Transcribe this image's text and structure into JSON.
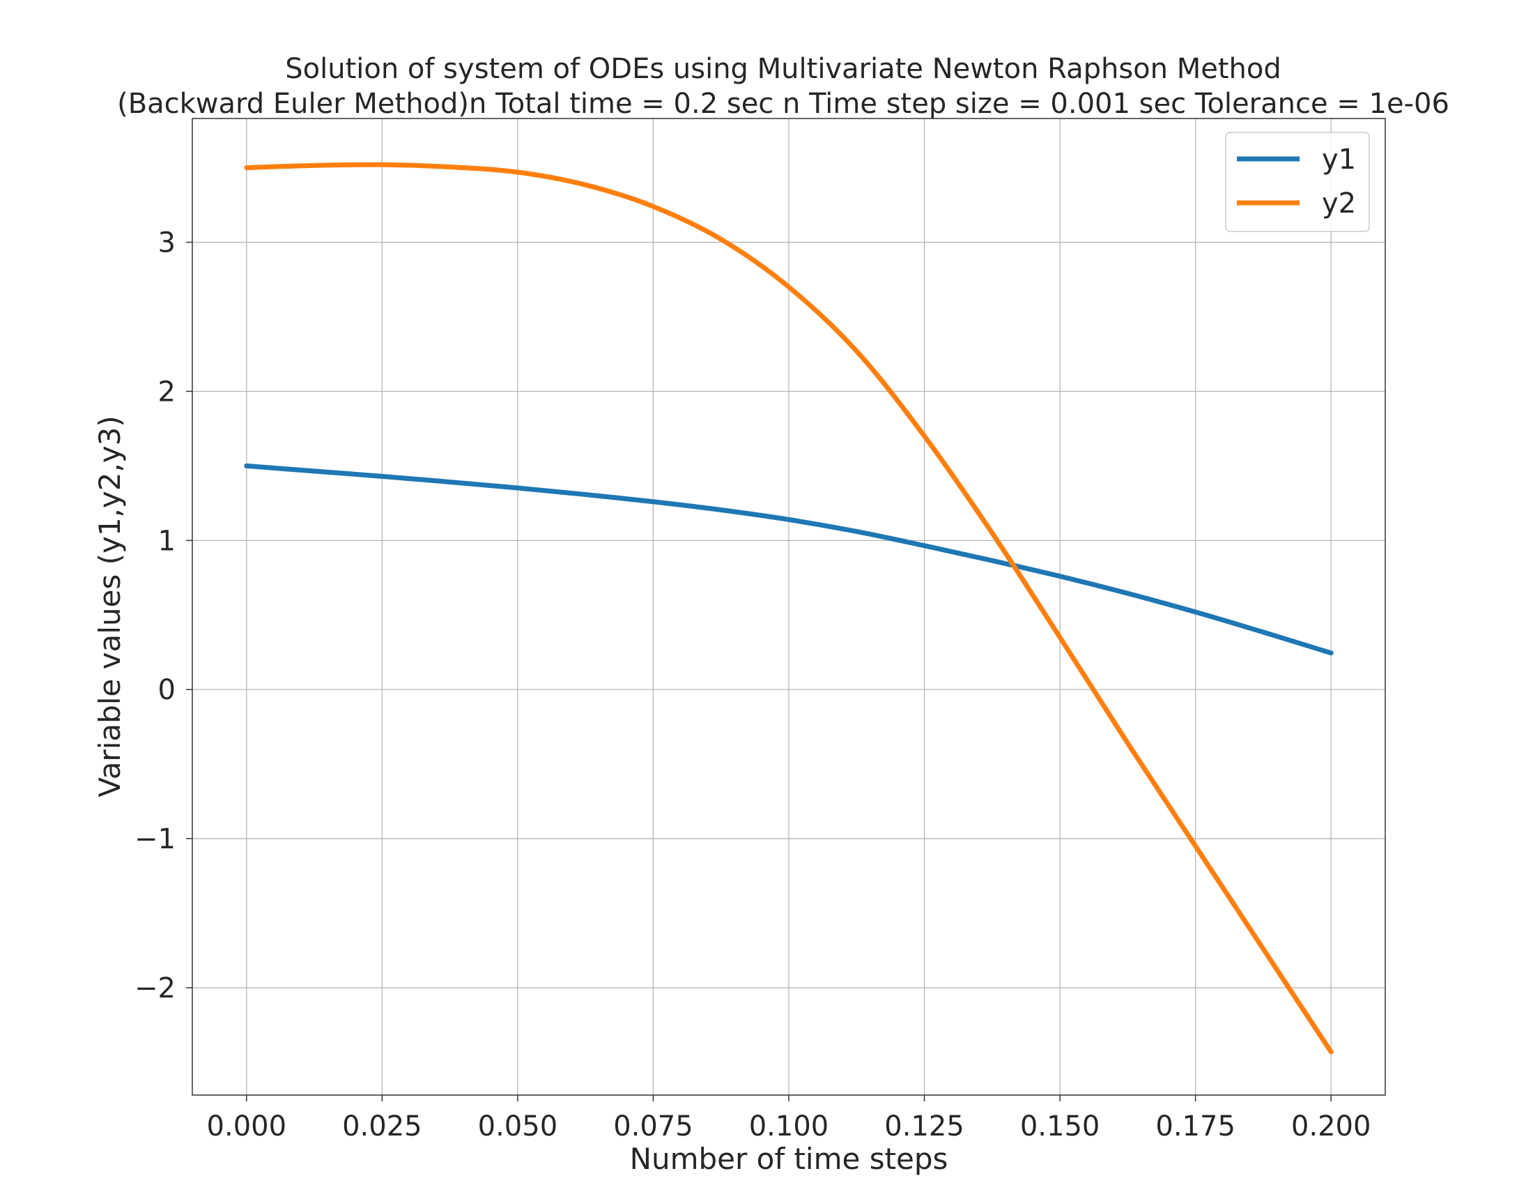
{
  "chart_data": {
    "type": "line",
    "title_line1": "Solution of system of ODEs using Multivariate Newton Raphson Method",
    "title_line2": "(Backward Euler Method)n Total time = 0.2 sec n Time step size = 0.001 sec Tolerance = 1e-06",
    "xlabel": "Number of time steps",
    "ylabel": "Variable values (y1,y2,y3)",
    "xlim": [
      -0.01,
      0.21
    ],
    "ylim": [
      -2.72,
      3.83
    ],
    "xticks": [
      0.0,
      0.025,
      0.05,
      0.075,
      0.1,
      0.125,
      0.15,
      0.175,
      0.2
    ],
    "xtick_labels": [
      "0.000",
      "0.025",
      "0.050",
      "0.075",
      "0.100",
      "0.125",
      "0.150",
      "0.175",
      "0.200"
    ],
    "yticks": [
      -2,
      -1,
      0,
      1,
      2,
      3
    ],
    "ytick_labels": [
      "−2",
      "−1",
      "0",
      "1",
      "2",
      "3"
    ],
    "grid": true,
    "legend_position": "top-right",
    "x": [
      0.0,
      0.0125,
      0.025,
      0.0375,
      0.05,
      0.0625,
      0.075,
      0.0875,
      0.1,
      0.1125,
      0.125,
      0.1375,
      0.15,
      0.1625,
      0.175,
      0.1875,
      0.2
    ],
    "series": [
      {
        "name": "y1",
        "color": "#1f77b4",
        "values": [
          1.5,
          1.465,
          1.43,
          1.392,
          1.352,
          1.308,
          1.26,
          1.205,
          1.14,
          1.06,
          0.965,
          0.865,
          0.76,
          0.645,
          0.52,
          0.385,
          0.245
        ]
      },
      {
        "name": "y2",
        "color": "#ff7f0e",
        "values": [
          3.5,
          3.515,
          3.52,
          3.505,
          3.47,
          3.385,
          3.24,
          3.02,
          2.7,
          2.27,
          1.7,
          1.05,
          0.35,
          -0.36,
          -1.05,
          -1.74,
          -2.43
        ]
      }
    ]
  }
}
